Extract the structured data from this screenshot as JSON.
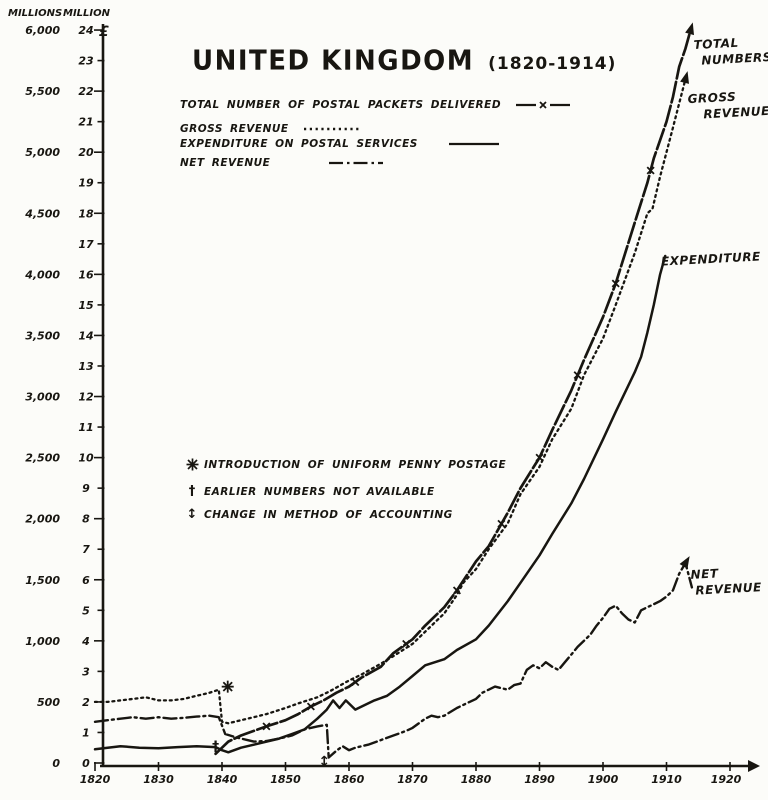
{
  "title": {
    "main": "UNITED KINGDOM",
    "range": "(1820-1914)"
  },
  "axes": {
    "left_header": "MILLIONS",
    "right_header": "MILLION",
    "pound_sign": "£",
    "left_tick_labels": [
      "0",
      "500",
      "1,000",
      "1,500",
      "2,000",
      "2,500",
      "3,000",
      "3,500",
      "4,000",
      "4,500",
      "5,000",
      "5,500",
      "6,000"
    ],
    "right_tick_labels": [
      "0",
      "1",
      "2",
      "3",
      "4",
      "5",
      "6",
      "7",
      "8",
      "9",
      "10",
      "11",
      "12",
      "13",
      "14",
      "15",
      "16",
      "17",
      "18",
      "19",
      "20",
      "21",
      "22",
      "23",
      "24"
    ],
    "x_tick_labels": [
      "1820",
      "1830",
      "1840",
      "1850",
      "1860",
      "1870",
      "1880",
      "1890",
      "1900",
      "1910",
      "1920"
    ]
  },
  "legend": [
    {
      "label": "TOTAL NUMBER OF POSTAL PACKETS DELIVERED",
      "style": "dash-x"
    },
    {
      "label": "GROSS REVENUE",
      "style": "dotted"
    },
    {
      "label": "EXPENDITURE ON POSTAL SERVICES",
      "style": "solid"
    },
    {
      "label": "NET REVENUE",
      "style": "dash-dot"
    }
  ],
  "annotations": [
    {
      "symbol": "asterisk-star",
      "text": "INTRODUCTION OF UNIFORM PENNY POSTAGE"
    },
    {
      "symbol": "†",
      "text": "EARLIER NUMBERS NOT AVAILABLE"
    },
    {
      "symbol": "↕",
      "text": "CHANGE IN METHOD OF ACCOUNTING"
    }
  ],
  "end_labels": {
    "total_line1": "TOTAL",
    "total_line2": "NUMBERS",
    "gross_line1": "GROSS",
    "gross_line2": "REVENUE",
    "expenditure": "EXPENDITURE",
    "net_line1": "NET",
    "net_line2": "REVENUE"
  },
  "ink_color": "#181611",
  "paper_color": "#fcfcf9",
  "chart_data": {
    "type": "line",
    "title": "UNITED KINGDOM (1820-1914)",
    "x_domain": [
      1820,
      1920
    ],
    "y_domain_million_pounds": [
      0,
      24
    ],
    "y_domain_millions_of_packets": [
      0,
      6000
    ],
    "grid": false,
    "legend_position": "top-left",
    "scales": {
      "packets_millions_per_pound_unit": 250
    },
    "series": [
      {
        "name": "gross_revenue",
        "label": "GROSS REVENUE",
        "style": "dotted",
        "values_in": "million_pounds",
        "points": [
          [
            1820,
            2.0
          ],
          [
            1822,
            2.0
          ],
          [
            1824,
            2.05
          ],
          [
            1826,
            2.1
          ],
          [
            1828,
            2.15
          ],
          [
            1830,
            2.05
          ],
          [
            1832,
            2.05
          ],
          [
            1834,
            2.1
          ],
          [
            1836,
            2.2
          ],
          [
            1838,
            2.3
          ],
          [
            1839.5,
            2.4
          ],
          [
            1840,
            1.35
          ],
          [
            1841,
            1.3
          ],
          [
            1843,
            1.4
          ],
          [
            1845,
            1.5
          ],
          [
            1847,
            1.6
          ],
          [
            1850,
            1.8
          ],
          [
            1852,
            1.95
          ],
          [
            1855,
            2.15
          ],
          [
            1857,
            2.35
          ],
          [
            1860,
            2.7
          ],
          [
            1862,
            2.9
          ],
          [
            1865,
            3.25
          ],
          [
            1867,
            3.5
          ],
          [
            1870,
            3.9
          ],
          [
            1872,
            4.3
          ],
          [
            1875,
            4.9
          ],
          [
            1877,
            5.5
          ],
          [
            1878,
            5.9
          ],
          [
            1880,
            6.35
          ],
          [
            1882,
            7.0
          ],
          [
            1885,
            7.85
          ],
          [
            1887,
            8.8
          ],
          [
            1890,
            9.7
          ],
          [
            1892,
            10.6
          ],
          [
            1895,
            11.6
          ],
          [
            1897,
            12.7
          ],
          [
            1900,
            13.9
          ],
          [
            1902,
            15.0
          ],
          [
            1905,
            16.7
          ],
          [
            1907,
            18.0
          ],
          [
            1907.8,
            18.15
          ],
          [
            1909,
            19.2
          ],
          [
            1910,
            20.0
          ],
          [
            1911,
            20.8
          ],
          [
            1912,
            21.6
          ],
          [
            1913,
            22.4
          ]
        ]
      },
      {
        "name": "total_numbers",
        "label": "TOTAL NUMBERS",
        "style": "dash-x",
        "values_in": "million_pounds_scale",
        "packets_millions_multiplier": 250,
        "points": [
          [
            1839,
            0.3
          ],
          [
            1840,
            0.5
          ],
          [
            1841,
            0.7
          ],
          [
            1843,
            0.9
          ],
          [
            1845,
            1.05
          ],
          [
            1847,
            1.2
          ],
          [
            1850,
            1.4
          ],
          [
            1852,
            1.6
          ],
          [
            1854,
            1.85
          ],
          [
            1856,
            2.05
          ],
          [
            1858,
            2.3
          ],
          [
            1860,
            2.5
          ],
          [
            1862,
            2.8
          ],
          [
            1865,
            3.15
          ],
          [
            1867,
            3.6
          ],
          [
            1870,
            4.05
          ],
          [
            1872,
            4.5
          ],
          [
            1875,
            5.1
          ],
          [
            1877,
            5.65
          ],
          [
            1880,
            6.6
          ],
          [
            1882,
            7.1
          ],
          [
            1885,
            8.2
          ],
          [
            1887,
            9.0
          ],
          [
            1890,
            10.0
          ],
          [
            1892,
            10.9
          ],
          [
            1895,
            12.2
          ],
          [
            1897,
            13.2
          ],
          [
            1900,
            14.6
          ],
          [
            1902,
            15.7
          ],
          [
            1905,
            17.7
          ],
          [
            1907,
            19.0
          ],
          [
            1908,
            19.8
          ],
          [
            1910,
            21.0
          ],
          [
            1911,
            21.8
          ],
          [
            1912,
            22.8
          ],
          [
            1913,
            23.4
          ],
          [
            1913.8,
            24.0
          ]
        ]
      },
      {
        "name": "expenditure",
        "label": "EXPENDITURE",
        "style": "solid",
        "values_in": "million_pounds",
        "points": [
          [
            1820,
            0.45
          ],
          [
            1822,
            0.5
          ],
          [
            1824,
            0.55
          ],
          [
            1827,
            0.5
          ],
          [
            1830,
            0.48
          ],
          [
            1833,
            0.52
          ],
          [
            1836,
            0.55
          ],
          [
            1839,
            0.52
          ],
          [
            1840,
            0.42
          ],
          [
            1841,
            0.35
          ],
          [
            1843,
            0.5
          ],
          [
            1845,
            0.6
          ],
          [
            1847,
            0.7
          ],
          [
            1849,
            0.8
          ],
          [
            1851,
            0.95
          ],
          [
            1853,
            1.1
          ],
          [
            1855,
            1.45
          ],
          [
            1856.5,
            1.75
          ],
          [
            1857.5,
            2.05
          ],
          [
            1858.5,
            1.8
          ],
          [
            1859.5,
            2.05
          ],
          [
            1861,
            1.75
          ],
          [
            1862,
            1.85
          ],
          [
            1864,
            2.05
          ],
          [
            1866,
            2.2
          ],
          [
            1868,
            2.5
          ],
          [
            1870,
            2.85
          ],
          [
            1872,
            3.2
          ],
          [
            1875,
            3.4
          ],
          [
            1877,
            3.7
          ],
          [
            1880,
            4.05
          ],
          [
            1882,
            4.5
          ],
          [
            1885,
            5.3
          ],
          [
            1887,
            5.9
          ],
          [
            1890,
            6.8
          ],
          [
            1892,
            7.5
          ],
          [
            1895,
            8.5
          ],
          [
            1897,
            9.3
          ],
          [
            1900,
            10.6
          ],
          [
            1902,
            11.5
          ],
          [
            1905,
            12.8
          ],
          [
            1906,
            13.3
          ],
          [
            1907,
            14.1
          ],
          [
            1908,
            15.0
          ],
          [
            1909,
            16.0
          ],
          [
            1909.8,
            16.6
          ]
        ]
      },
      {
        "name": "net_revenue",
        "label": "NET REVENUE",
        "style": "dash-dot",
        "values_in": "million_pounds",
        "points": [
          [
            1820,
            1.35
          ],
          [
            1822,
            1.4
          ],
          [
            1824,
            1.45
          ],
          [
            1826,
            1.5
          ],
          [
            1828,
            1.45
          ],
          [
            1830,
            1.5
          ],
          [
            1832,
            1.45
          ],
          [
            1834,
            1.48
          ],
          [
            1836,
            1.52
          ],
          [
            1838,
            1.55
          ],
          [
            1839.5,
            1.5
          ],
          [
            1840.5,
            0.95
          ],
          [
            1842,
            0.85
          ],
          [
            1844,
            0.75
          ],
          [
            1845,
            0.7
          ],
          [
            1847,
            0.72
          ],
          [
            1849,
            0.8
          ],
          [
            1851,
            0.9
          ],
          [
            1853,
            1.1
          ],
          [
            1855,
            1.2
          ],
          [
            1856.5,
            1.25
          ],
          [
            1856.8,
            0.18
          ],
          [
            1858,
            0.4
          ],
          [
            1859,
            0.55
          ],
          [
            1860,
            0.42
          ],
          [
            1861,
            0.5
          ],
          [
            1863,
            0.6
          ],
          [
            1865,
            0.75
          ],
          [
            1867,
            0.9
          ],
          [
            1869,
            1.05
          ],
          [
            1870,
            1.15
          ],
          [
            1871,
            1.3
          ],
          [
            1872,
            1.45
          ],
          [
            1873,
            1.55
          ],
          [
            1874,
            1.5
          ],
          [
            1875,
            1.55
          ],
          [
            1877,
            1.8
          ],
          [
            1879,
            2.0
          ],
          [
            1880,
            2.1
          ],
          [
            1881,
            2.3
          ],
          [
            1882,
            2.4
          ],
          [
            1883,
            2.5
          ],
          [
            1884,
            2.45
          ],
          [
            1885,
            2.4
          ],
          [
            1886,
            2.55
          ],
          [
            1887,
            2.6
          ],
          [
            1888,
            3.05
          ],
          [
            1889,
            3.2
          ],
          [
            1890,
            3.1
          ],
          [
            1891,
            3.3
          ],
          [
            1892,
            3.15
          ],
          [
            1893,
            3.05
          ],
          [
            1894,
            3.3
          ],
          [
            1895,
            3.55
          ],
          [
            1896,
            3.8
          ],
          [
            1897,
            4.0
          ],
          [
            1898,
            4.2
          ],
          [
            1899,
            4.5
          ],
          [
            1900,
            4.75
          ],
          [
            1901,
            5.05
          ],
          [
            1902,
            5.15
          ],
          [
            1903,
            4.9
          ],
          [
            1904,
            4.7
          ],
          [
            1905,
            4.6
          ],
          [
            1906,
            5.0
          ],
          [
            1907,
            5.1
          ],
          [
            1908,
            5.2
          ],
          [
            1909,
            5.3
          ],
          [
            1910,
            5.45
          ],
          [
            1911,
            5.65
          ],
          [
            1912,
            6.2
          ],
          [
            1913,
            6.55
          ],
          [
            1914,
            5.75
          ]
        ]
      }
    ],
    "x_marker_years": [
      1847,
      1854,
      1861,
      1869,
      1877,
      1884,
      1890,
      1896,
      1902,
      1907.5
    ],
    "point_symbols": [
      {
        "name": "penny-postage-asterisk",
        "glyph": "asterisk-star",
        "year": 1840.9,
        "value": 2.5
      },
      {
        "name": "numbers-not-available-dagger",
        "glyph": "†",
        "year": 1839.0,
        "value": 0.55
      },
      {
        "name": "accounting-change-arrow",
        "glyph": "↕",
        "year": 1856.1,
        "value": 0.07
      }
    ],
    "arrows": [
      {
        "series": "total_numbers",
        "at": "end"
      },
      {
        "series": "gross_revenue",
        "at": "end"
      },
      {
        "series": "net_revenue",
        "at_year": 1913
      }
    ]
  }
}
